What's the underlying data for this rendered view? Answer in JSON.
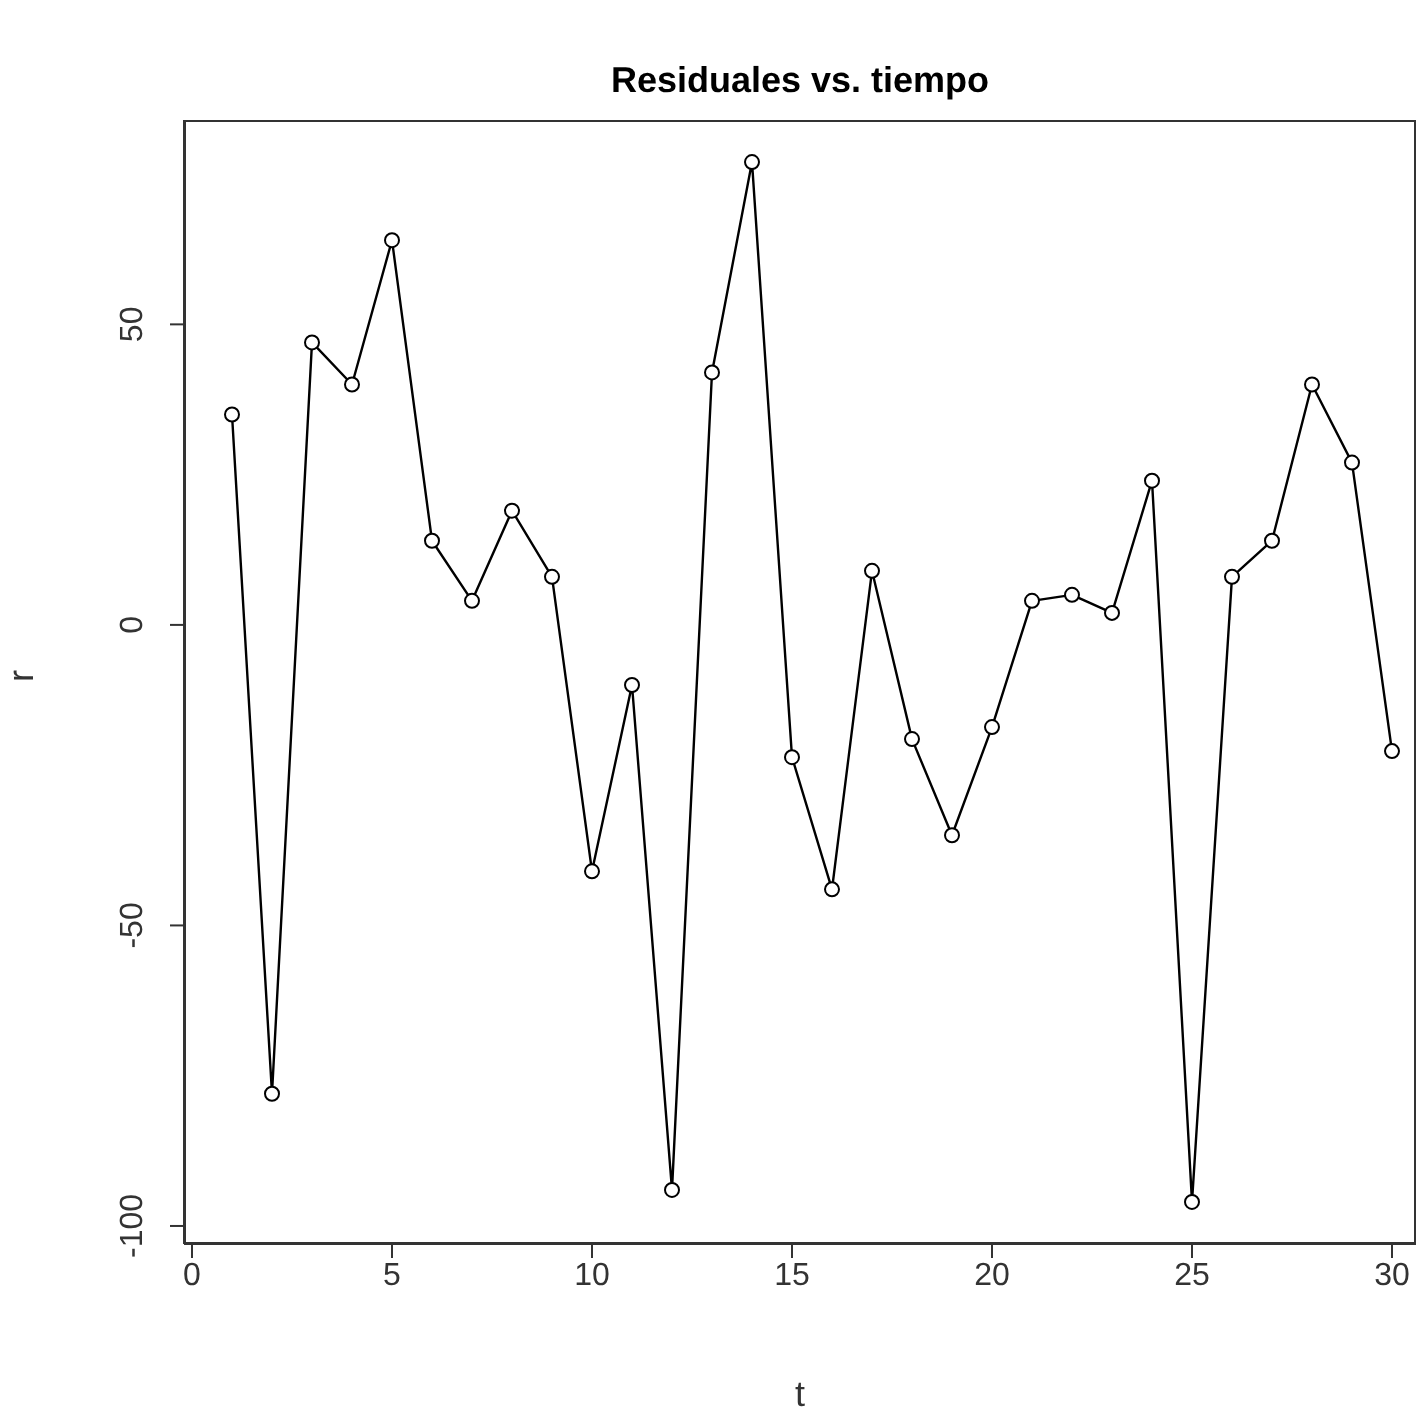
{
  "chart_data": {
    "type": "line",
    "title": "Residuales vs. tiempo",
    "xlabel": "t",
    "ylabel": "r",
    "x": [
      1,
      2,
      3,
      4,
      5,
      6,
      7,
      8,
      9,
      10,
      11,
      12,
      13,
      14,
      15,
      16,
      17,
      18,
      19,
      20,
      21,
      22,
      23,
      24,
      25,
      26,
      27,
      28,
      29,
      30
    ],
    "series": [
      {
        "color": "#000000",
        "values": [
          35,
          -78,
          47,
          40,
          64,
          14,
          4,
          19,
          8,
          -41,
          -10,
          -94,
          42,
          77,
          -22,
          -44,
          9,
          -19,
          -35,
          -17,
          4,
          5,
          2,
          24,
          -96,
          8,
          14,
          40,
          27,
          -21
        ]
      }
    ],
    "xlim": [
      -0.2,
      30.6
    ],
    "xticks": [
      0,
      5,
      10,
      15,
      20,
      25,
      30
    ],
    "ylim": [
      -103,
      84
    ],
    "yticks": [
      -100,
      -50,
      0,
      50
    ],
    "marker": "circle",
    "grid": false,
    "legend": false
  }
}
